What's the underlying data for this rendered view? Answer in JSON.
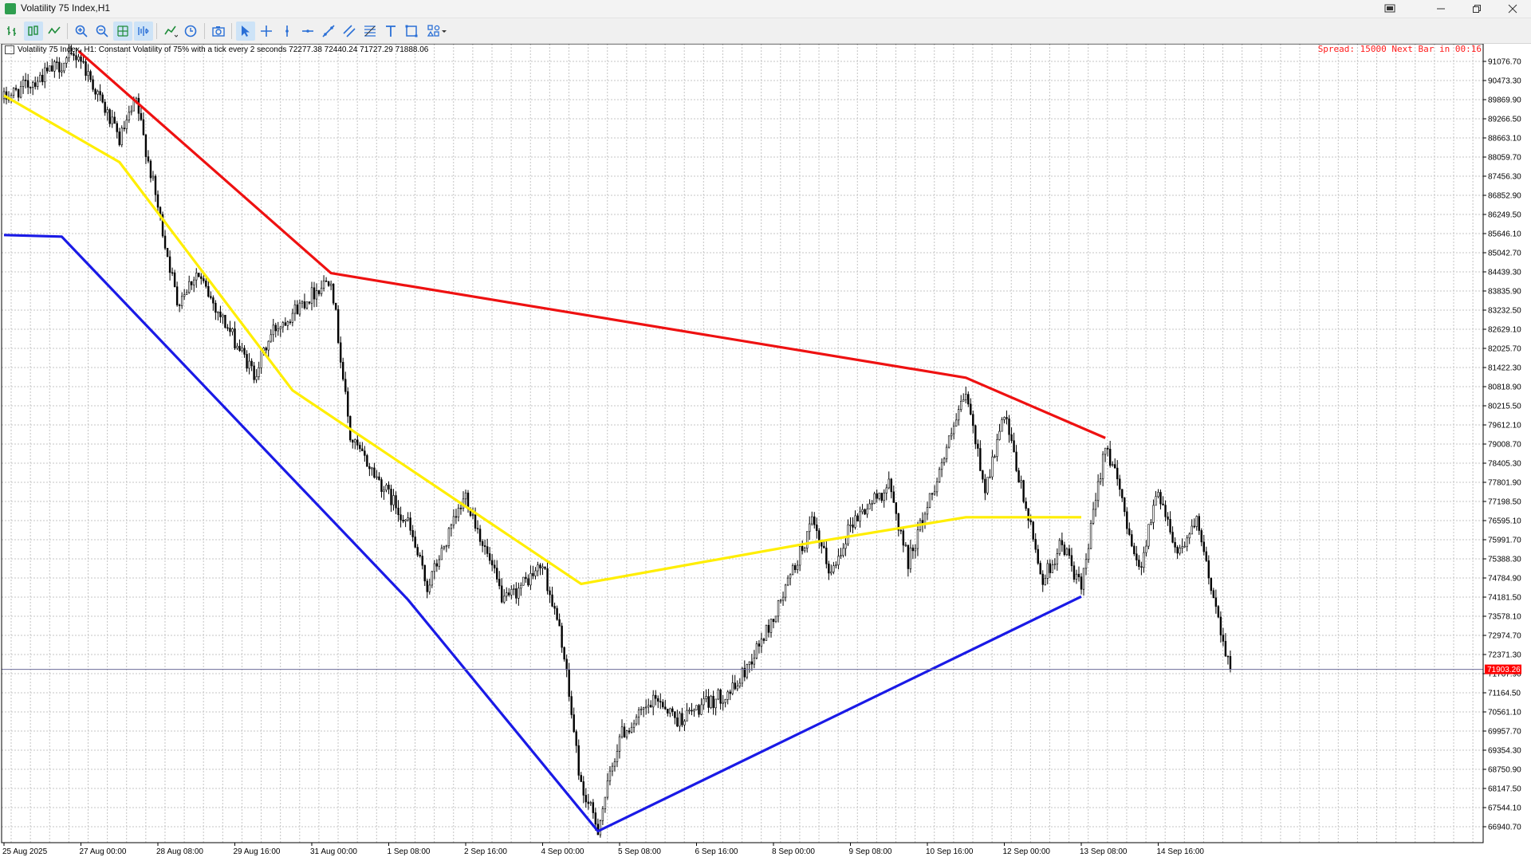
{
  "window": {
    "title": "Volatility 75 Index,H1",
    "controls": [
      "restore-tabs-icon",
      "minimize-icon",
      "maximize-icon",
      "close-icon"
    ]
  },
  "toolbar": {
    "buttons": [
      {
        "name": "bar-chart-icon",
        "active": false
      },
      {
        "name": "candlestick-icon",
        "active": true
      },
      {
        "name": "line-chart-icon",
        "active": false
      },
      {
        "name": "zoom-in-icon",
        "active": false
      },
      {
        "name": "zoom-out-icon",
        "active": false
      },
      {
        "name": "grid-icon",
        "active": true
      },
      {
        "name": "auto-scroll-icon",
        "active": true
      },
      {
        "name": "indicators-icon",
        "active": false
      },
      {
        "name": "periods-clock-icon",
        "active": false
      },
      {
        "name": "screenshot-icon",
        "active": false
      },
      {
        "name": "cursor-icon",
        "active": true
      },
      {
        "name": "crosshair-icon",
        "active": false
      },
      {
        "name": "vertical-line-icon",
        "active": false
      },
      {
        "name": "horizontal-line-icon",
        "active": false
      },
      {
        "name": "trendline-icon",
        "active": false
      },
      {
        "name": "equidistant-channel-icon",
        "active": false
      },
      {
        "name": "fibonacci-icon",
        "active": false
      },
      {
        "name": "text-icon",
        "active": false
      },
      {
        "name": "shapes-icon",
        "active": false
      },
      {
        "name": "objects-menu-icon",
        "active": false
      }
    ]
  },
  "chart": {
    "info_line": "Volatility 75 Index, H1:  Constant Volatility of 75% with a tick every 2 seconds  72277.38 72440.24 71727.29 71888.06",
    "spread_text": "Spread: 15000 Next Bar in 00:16",
    "current_price_label": "71903.26",
    "colors": {
      "bull": "#000000",
      "bear": "#000000",
      "red_line": "#ee1111",
      "blue_line": "#1a1ae6",
      "yellow_line": "#ffee00",
      "grid": "#c4c4c4",
      "price_tag": "#ff0000"
    },
    "price_labels": [
      "91076.70",
      "90473.30",
      "89869.90",
      "89266.50",
      "88663.10",
      "88059.70",
      "87456.30",
      "86852.90",
      "86249.50",
      "85646.10",
      "85042.70",
      "84439.30",
      "83835.90",
      "83232.50",
      "82629.10",
      "82025.70",
      "81422.30",
      "80818.90",
      "80215.50",
      "79612.10",
      "79008.70",
      "78405.30",
      "77801.90",
      "77198.50",
      "76595.10",
      "75991.70",
      "75388.30",
      "74784.90",
      "74181.50",
      "73578.10",
      "72974.70",
      "72371.30",
      "71767.90",
      "71164.50",
      "70561.10",
      "69957.70",
      "69354.30",
      "68750.90",
      "68147.50",
      "67544.10",
      "66940.70"
    ],
    "time_labels": [
      "25 Aug 2025",
      "27 Aug 00:00",
      "28 Aug 08:00",
      "29 Aug 16:00",
      "31 Aug 00:00",
      "1 Sep 08:00",
      "2 Sep 16:00",
      "4 Sep 00:00",
      "5 Sep 08:00",
      "6 Sep 16:00",
      "8 Sep 00:00",
      "9 Sep 08:00",
      "10 Sep 16:00",
      "12 Sep 00:00",
      "13 Sep 08:00",
      "14 Sep 16:00"
    ]
  },
  "chart_data": {
    "type": "candlestick",
    "title": "Volatility 75 Index,H1",
    "ylim": [
      66600,
      91400
    ],
    "current_price": 71903.26,
    "price_path": [
      [
        "25 Aug 2025",
        89900
      ],
      [
        "26 Aug 07:00",
        91300
      ],
      [
        "27 Aug 00:00",
        88600
      ],
      [
        "27 Aug 07:00",
        89800
      ],
      [
        "28 Aug 00:00",
        83500
      ],
      [
        "28 Aug 08:00",
        84400
      ],
      [
        "29 Aug 08:00",
        81200
      ],
      [
        "29 Aug 16:00",
        82600
      ],
      [
        "30 Aug 16:00",
        84300
      ],
      [
        "31 Aug 00:00",
        79200
      ],
      [
        "1 Sep 00:00",
        76500
      ],
      [
        "1 Sep 08:00",
        74500
      ],
      [
        "2 Sep 00:00",
        77400
      ],
      [
        "2 Sep 16:00",
        74000
      ],
      [
        "3 Sep 08:00",
        75200
      ],
      [
        "3 Sep 16:00",
        72800
      ],
      [
        "4 Sep 00:00",
        68200
      ],
      [
        "4 Sep 07:00",
        66900
      ],
      [
        "4 Sep 16:00",
        69800
      ],
      [
        "5 Sep 08:00",
        71000
      ],
      [
        "5 Sep 16:00",
        70300
      ],
      [
        "6 Sep 16:00",
        71300
      ],
      [
        "7 Sep 08:00",
        73500
      ],
      [
        "8 Sep 00:00",
        76500
      ],
      [
        "8 Sep 08:00",
        74900
      ],
      [
        "8 Sep 16:00",
        76500
      ],
      [
        "9 Sep 08:00",
        77700
      ],
      [
        "9 Sep 16:00",
        75300
      ],
      [
        "10 Sep 16:00",
        80600
      ],
      [
        "11 Sep 00:00",
        77600
      ],
      [
        "11 Sep 08:00",
        79900
      ],
      [
        "12 Sep 00:00",
        74700
      ],
      [
        "12 Sep 08:00",
        75900
      ],
      [
        "12 Sep 16:00",
        74400
      ],
      [
        "13 Sep 02:00",
        79100
      ],
      [
        "13 Sep 08:00",
        77500
      ],
      [
        "13 Sep 16:00",
        75000
      ],
      [
        "14 Sep 00:00",
        77600
      ],
      [
        "14 Sep 08:00",
        75600
      ],
      [
        "14 Sep 16:00",
        76500
      ],
      [
        "15 Sep 06:00",
        71903.26
      ]
    ],
    "trendlines": [
      {
        "color": "red",
        "points": [
          [
            "26 Aug 07:00",
            91400
          ],
          [
            "30 Aug 16:00",
            84400
          ],
          [
            "10 Sep 16:00",
            81100
          ],
          [
            "13 Sep 02:00",
            79200
          ]
        ]
      },
      {
        "color": "blue",
        "points": [
          [
            "25 Aug 2025",
            85600
          ],
          [
            "26 Aug 00:00",
            85550
          ],
          [
            "1 Sep 00:00",
            74100
          ],
          [
            "4 Sep 07:00",
            66800
          ],
          [
            "12 Sep 16:00",
            74200
          ]
        ]
      },
      {
        "color": "yellow",
        "points": [
          [
            "25 Aug 2025",
            90000
          ],
          [
            "27 Aug 00:00",
            87900
          ],
          [
            "30 Aug 00:00",
            80700
          ],
          [
            "4 Sep 00:00",
            74600
          ],
          [
            "8 Sep 00:00",
            75900
          ],
          [
            "10 Sep 16:00",
            76700
          ],
          [
            "12 Sep 16:00",
            76700
          ]
        ]
      }
    ]
  }
}
